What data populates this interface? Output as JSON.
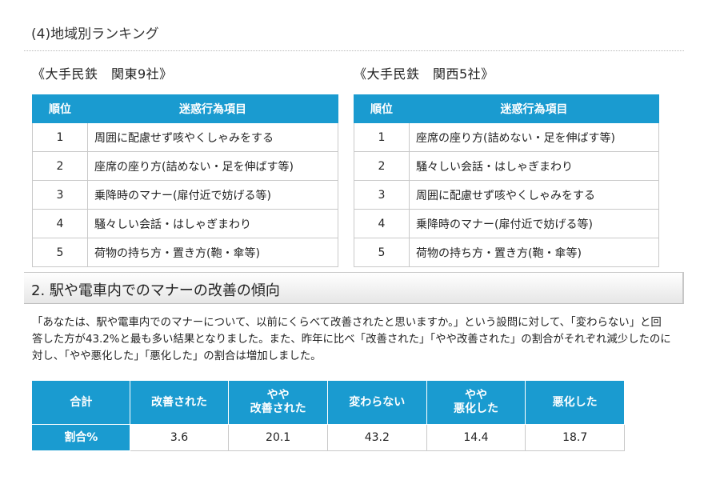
{
  "sub_heading": "(4)地域別ランキング",
  "kanto": {
    "title": "《大手民鉄　関東9社》",
    "headers": [
      "順位",
      "迷惑行為項目"
    ],
    "rows": [
      {
        "rank": "1",
        "item": "周囲に配慮せず咳やくしゃみをする"
      },
      {
        "rank": "2",
        "item": "座席の座り方(詰めない・足を伸ばす等)"
      },
      {
        "rank": "3",
        "item": "乗降時のマナー(扉付近で妨げる等)"
      },
      {
        "rank": "4",
        "item": "騒々しい会話・はしゃぎまわり"
      },
      {
        "rank": "5",
        "item": "荷物の持ち方・置き方(鞄・傘等)"
      }
    ]
  },
  "kansai": {
    "title": "《大手民鉄　関西5社》",
    "headers": [
      "順位",
      "迷惑行為項目"
    ],
    "rows": [
      {
        "rank": "1",
        "item": "座席の座り方(詰めない・足を伸ばす等)"
      },
      {
        "rank": "2",
        "item": "騒々しい会話・はしゃぎまわり"
      },
      {
        "rank": "3",
        "item": "周囲に配慮せず咳やくしゃみをする"
      },
      {
        "rank": "4",
        "item": "乗降時のマナー(扉付近で妨げる等)"
      },
      {
        "rank": "5",
        "item": "荷物の持ち方・置き方(鞄・傘等)"
      }
    ]
  },
  "section2": {
    "title": "2. 駅や電車内でのマナーの改善の傾向",
    "paragraph": "「あなたは、駅や電車内でのマナーについて、以前にくらべて改善されたと思いますか。」という設問に対して、「変わらない」と回答した方が43.2%と最も多い結果となりました。また、昨年に比べ「改善された」「やや改善された」の割合がそれぞれ減少したのに対し、「やや悪化した」「悪化した」の割合は増加しました。"
  },
  "summary": {
    "corner": "合計",
    "row_label": "割合%",
    "columns": [
      {
        "line1": "改善された",
        "line2": "",
        "value": "3.6"
      },
      {
        "line1": "やや",
        "line2": "改善された",
        "value": "20.1"
      },
      {
        "line1": "変わらない",
        "line2": "",
        "value": "43.2"
      },
      {
        "line1": "やや",
        "line2": "悪化した",
        "value": "14.4"
      },
      {
        "line1": "悪化した",
        "line2": "",
        "value": "18.7"
      }
    ]
  }
}
